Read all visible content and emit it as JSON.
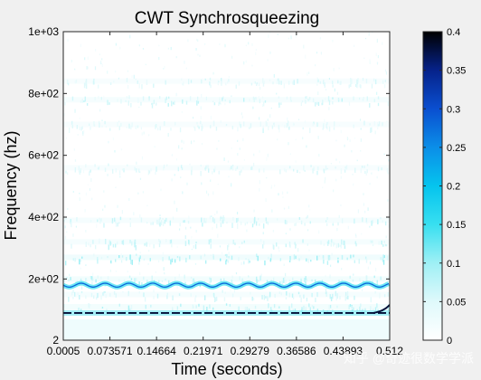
{
  "chart_data": {
    "type": "heatmap",
    "title": "CWT Synchrosqueezing",
    "xlabel": "Time (seconds)",
    "ylabel": "Frequency (hz)",
    "xlim": [
      0.0005,
      0.512
    ],
    "ylim": [
      2,
      1000
    ],
    "x_ticks": [
      0.0005,
      0.073571,
      0.14664,
      0.21971,
      0.29279,
      0.36586,
      0.43893,
      0.512
    ],
    "x_tick_labels": [
      "0.0005",
      "0.073571",
      "0.14664",
      "0.21971",
      "0.29279",
      "0.36586",
      "0.43893",
      "0.512"
    ],
    "y_ticks": [
      2,
      200,
      400,
      600,
      800,
      1000
    ],
    "y_tick_labels": [
      "2",
      "2e+02",
      "4e+02",
      "6e+02",
      "8e+02",
      "1e+03"
    ],
    "colorbar": {
      "range": [
        0,
        0.4
      ],
      "ticks": [
        0,
        0.05,
        0.1,
        0.15,
        0.2,
        0.25,
        0.3,
        0.35,
        0.4
      ],
      "tick_labels": [
        "0",
        "0.05",
        "0.1",
        "0.15",
        "0.2",
        "0.25",
        "0.3",
        "0.35",
        "0.4"
      ],
      "colors": [
        "#ffffff",
        "#dff9fb",
        "#9ff0f5",
        "#38dff0",
        "#05c4ee",
        "#0b8ee8",
        "#0a4fd0",
        "#06228a",
        "#000000"
      ]
    },
    "ridges": [
      {
        "frequency": 90,
        "magnitude": 0.38,
        "style": "dashed"
      },
      {
        "frequency": 180,
        "magnitude": 0.28,
        "style": "wavy"
      }
    ],
    "bands": [
      {
        "frequency": 110,
        "magnitude": 0.06
      },
      {
        "frequency": 150,
        "magnitude": 0.05
      },
      {
        "frequency": 200,
        "magnitude": 0.06
      },
      {
        "frequency": 270,
        "magnitude": 0.07
      },
      {
        "frequency": 320,
        "magnitude": 0.05
      },
      {
        "frequency": 390,
        "magnitude": 0.05
      },
      {
        "frequency": 560,
        "magnitude": 0.04
      },
      {
        "frequency": 700,
        "magnitude": 0.04
      },
      {
        "frequency": 780,
        "magnitude": 0.05
      },
      {
        "frequency": 840,
        "magnitude": 0.04
      }
    ]
  },
  "watermark": "知乎 @奇迹很数学学派",
  "colors": {
    "figure_background": "#f0f0f0",
    "axes_background": "#ffffff"
  }
}
